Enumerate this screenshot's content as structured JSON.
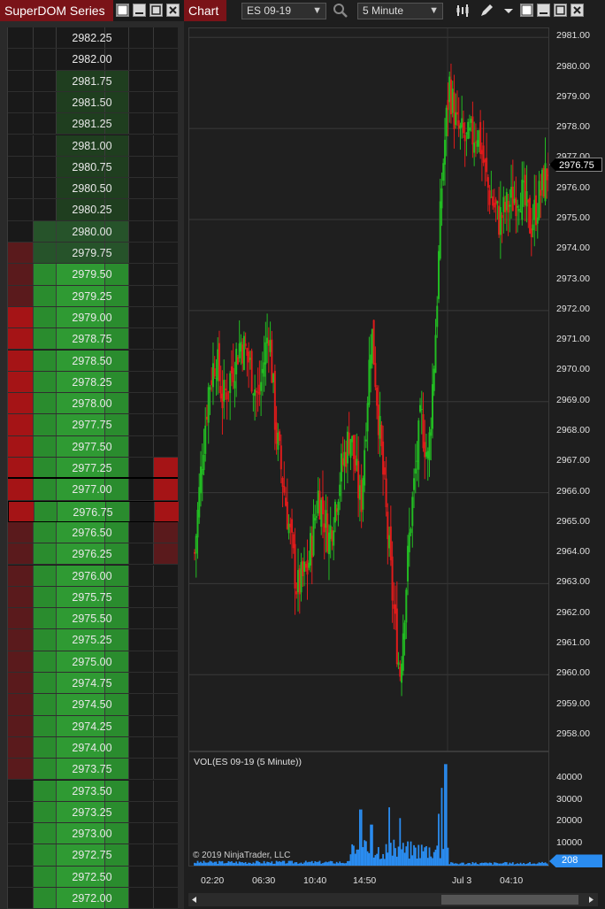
{
  "superdom": {
    "title": "SuperDOM Series",
    "last_price": "2976.75",
    "rows": [
      {
        "price": "2982.25",
        "buy": 0,
        "sell": 0,
        "pos": ""
      },
      {
        "price": "2982.00",
        "buy": 0,
        "sell": 0,
        "pos": ""
      },
      {
        "price": "2981.75",
        "buy": 0,
        "sell": 0,
        "pos": "hist"
      },
      {
        "price": "2981.50",
        "buy": 0,
        "sell": 0,
        "pos": "hist"
      },
      {
        "price": "2981.25",
        "buy": 0,
        "sell": 0,
        "pos": "hist"
      },
      {
        "price": "2981.00",
        "buy": 0,
        "sell": 0,
        "pos": "hist"
      },
      {
        "price": "2980.75",
        "buy": 0,
        "sell": 0,
        "pos": "hist"
      },
      {
        "price": "2980.50",
        "buy": 0,
        "sell": 0,
        "pos": "hist"
      },
      {
        "price": "2980.25",
        "buy": 0,
        "sell": 0,
        "pos": "hist"
      },
      {
        "price": "2980.00",
        "buy": 0,
        "sell": 0,
        "pos": "hist2"
      },
      {
        "price": "2979.75",
        "buy": 0,
        "sell": 1,
        "pos": "hist2"
      },
      {
        "price": "2979.50",
        "buy": 0,
        "sell": 1,
        "pos": "green"
      },
      {
        "price": "2979.25",
        "buy": 0,
        "sell": 1,
        "pos": "green"
      },
      {
        "price": "2979.00",
        "buy": 0,
        "sell": 2,
        "pos": "green"
      },
      {
        "price": "2978.75",
        "buy": 0,
        "sell": 2,
        "pos": "green"
      },
      {
        "price": "2978.50",
        "buy": 0,
        "sell": 2,
        "pos": "green"
      },
      {
        "price": "2978.25",
        "buy": 0,
        "sell": 2,
        "pos": "green"
      },
      {
        "price": "2978.00",
        "buy": 0,
        "sell": 2,
        "pos": "green"
      },
      {
        "price": "2977.75",
        "buy": 0,
        "sell": 2,
        "pos": "green"
      },
      {
        "price": "2977.50",
        "buy": 0,
        "sell": 2,
        "pos": "green"
      },
      {
        "price": "2977.25",
        "buy": 1,
        "sell": 2,
        "pos": "green"
      },
      {
        "price": "2977.00",
        "buy": 1,
        "sell": 2,
        "pos": "green"
      },
      {
        "price": "2976.75",
        "buy": 1,
        "sell": 2,
        "pos": "green"
      },
      {
        "price": "2976.50",
        "buy": 2,
        "sell": 1,
        "pos": "green"
      },
      {
        "price": "2976.25",
        "buy": 2,
        "sell": 1,
        "pos": "green"
      },
      {
        "price": "2976.00",
        "buy": 0,
        "sell": 1,
        "pos": "green"
      },
      {
        "price": "2975.75",
        "buy": 0,
        "sell": 1,
        "pos": "green"
      },
      {
        "price": "2975.50",
        "buy": 0,
        "sell": 1,
        "pos": "green"
      },
      {
        "price": "2975.25",
        "buy": 0,
        "sell": 1,
        "pos": "green"
      },
      {
        "price": "2975.00",
        "buy": 0,
        "sell": 1,
        "pos": "green"
      },
      {
        "price": "2974.75",
        "buy": 0,
        "sell": 1,
        "pos": "green"
      },
      {
        "price": "2974.50",
        "buy": 0,
        "sell": 1,
        "pos": "green"
      },
      {
        "price": "2974.25",
        "buy": 0,
        "sell": 1,
        "pos": "green"
      },
      {
        "price": "2974.00",
        "buy": 0,
        "sell": 1,
        "pos": "green"
      },
      {
        "price": "2973.75",
        "buy": 0,
        "sell": 1,
        "pos": "green"
      },
      {
        "price": "2973.50",
        "buy": 0,
        "sell": 0,
        "pos": "green"
      },
      {
        "price": "2973.25",
        "buy": 0,
        "sell": 0,
        "pos": "green"
      },
      {
        "price": "2973.00",
        "buy": 0,
        "sell": 0,
        "pos": "green"
      },
      {
        "price": "2972.75",
        "buy": 0,
        "sell": 0,
        "pos": "green"
      },
      {
        "price": "2972.50",
        "buy": 0,
        "sell": 0,
        "pos": "green"
      },
      {
        "price": "2972.00",
        "buy": 0,
        "sell": 0,
        "pos": "green"
      }
    ]
  },
  "chart": {
    "tab_label": "Chart",
    "instrument": "ES 09-19",
    "interval": "5 Minute",
    "last_price_marker": "2976.75",
    "price_ticks": [
      "2981.00",
      "2980.00",
      "2979.00",
      "2978.00",
      "2977.00",
      "2976.00",
      "2975.00",
      "2974.00",
      "2973.00",
      "2972.00",
      "2971.00",
      "2970.00",
      "2969.00",
      "2968.00",
      "2967.00",
      "2966.00",
      "2965.00",
      "2964.00",
      "2963.00",
      "2962.00",
      "2961.00",
      "2960.00",
      "2959.00",
      "2958.00"
    ],
    "volume_label": "VOL(ES 09-19 (5 Minute))",
    "volume_ticks": [
      "40000",
      "30000",
      "20000",
      "10000"
    ],
    "volume_last": "208",
    "copyright": "© 2019 NinjaTrader, LLC",
    "time_ticks": [
      "02:20",
      "06:30",
      "10:40",
      "14:50",
      "Jul 3",
      "04:10"
    ],
    "colors": {
      "up": "#22bb22",
      "down": "#e01b1b",
      "volume": "#2a8cf0",
      "accent": "#7a1318"
    }
  },
  "chart_data": {
    "type": "candlestick",
    "instrument": "ES 09-19",
    "interval": "5 Minute",
    "ylim": [
      2957.5,
      2981.3
    ],
    "close_path": [
      {
        "t": 0.0,
        "p": 2964.0
      },
      {
        "t": 0.02,
        "p": 2967.0
      },
      {
        "t": 0.04,
        "p": 2969.5
      },
      {
        "t": 0.06,
        "p": 2970.5
      },
      {
        "t": 0.08,
        "p": 2969.0
      },
      {
        "t": 0.1,
        "p": 2969.8
      },
      {
        "t": 0.13,
        "p": 2971.0
      },
      {
        "t": 0.15,
        "p": 2970.5
      },
      {
        "t": 0.18,
        "p": 2969.0
      },
      {
        "t": 0.21,
        "p": 2971.5
      },
      {
        "t": 0.23,
        "p": 2968.0
      },
      {
        "t": 0.26,
        "p": 2965.5
      },
      {
        "t": 0.29,
        "p": 2962.8
      },
      {
        "t": 0.32,
        "p": 2963.5
      },
      {
        "t": 0.35,
        "p": 2966.0
      },
      {
        "t": 0.38,
        "p": 2964.5
      },
      {
        "t": 0.41,
        "p": 2966.5
      },
      {
        "t": 0.44,
        "p": 2968.0
      },
      {
        "t": 0.47,
        "p": 2965.5
      },
      {
        "t": 0.5,
        "p": 2971.5
      },
      {
        "t": 0.53,
        "p": 2967.0
      },
      {
        "t": 0.56,
        "p": 2962.5
      },
      {
        "t": 0.58,
        "p": 2960.0
      },
      {
        "t": 0.61,
        "p": 2965.0
      },
      {
        "t": 0.64,
        "p": 2968.5
      },
      {
        "t": 0.66,
        "p": 2967.0
      },
      {
        "t": 0.68,
        "p": 2971.0
      },
      {
        "t": 0.7,
        "p": 2976.5
      },
      {
        "t": 0.72,
        "p": 2979.5
      },
      {
        "t": 0.74,
        "p": 2978.0
      },
      {
        "t": 0.77,
        "p": 2977.5
      },
      {
        "t": 0.8,
        "p": 2978.0
      },
      {
        "t": 0.83,
        "p": 2976.0
      },
      {
        "t": 0.86,
        "p": 2975.0
      },
      {
        "t": 0.89,
        "p": 2975.5
      },
      {
        "t": 0.92,
        "p": 2976.0
      },
      {
        "t": 0.95,
        "p": 2974.8
      },
      {
        "t": 1.0,
        "p": 2976.75
      }
    ],
    "volume_spikes": [
      {
        "t": 0.47,
        "v": 26000
      },
      {
        "t": 0.5,
        "v": 19000
      },
      {
        "t": 0.55,
        "v": 27000
      },
      {
        "t": 0.58,
        "v": 22000
      },
      {
        "t": 0.69,
        "v": 24000
      },
      {
        "t": 0.71,
        "v": 47000
      },
      {
        "t": 0.7,
        "v": 36000
      }
    ],
    "volume_last": 208
  }
}
